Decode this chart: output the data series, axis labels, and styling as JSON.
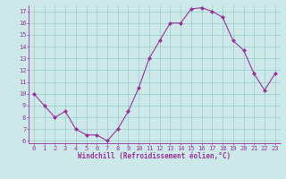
{
  "x": [
    0,
    1,
    2,
    3,
    4,
    5,
    6,
    7,
    8,
    9,
    10,
    11,
    12,
    13,
    14,
    15,
    16,
    17,
    18,
    19,
    20,
    21,
    22,
    23
  ],
  "y": [
    10.0,
    9.0,
    8.0,
    8.5,
    7.0,
    6.5,
    6.5,
    6.0,
    7.0,
    8.5,
    10.5,
    13.0,
    14.5,
    16.0,
    16.0,
    17.2,
    17.3,
    17.0,
    16.5,
    14.5,
    13.7,
    11.7,
    10.3,
    11.7
  ],
  "line_color": "#993399",
  "marker": "D",
  "marker_size": 2.0,
  "background_color": "#cce8e8",
  "grid_color": "#99cccc",
  "xlabel": "Windchill (Refroidissement éolien,°C)",
  "xlabel_color": "#993399",
  "tick_color": "#993399",
  "ylim": [
    5.8,
    17.5
  ],
  "yticks": [
    6,
    7,
    8,
    9,
    10,
    11,
    12,
    13,
    14,
    15,
    16,
    17
  ],
  "xticks": [
    0,
    1,
    2,
    3,
    4,
    5,
    6,
    7,
    8,
    9,
    10,
    11,
    12,
    13,
    14,
    15,
    16,
    17,
    18,
    19,
    20,
    21,
    22,
    23
  ],
  "spine_color": "#993399",
  "font_family": "monospace",
  "tick_fontsize": 5.0,
  "xlabel_fontsize": 5.5
}
